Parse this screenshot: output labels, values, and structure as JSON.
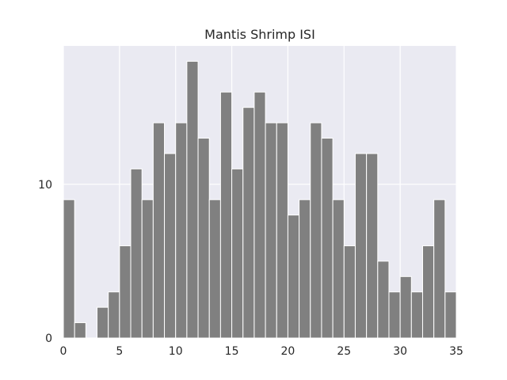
{
  "chart_data": {
    "type": "bar",
    "title": "Mantis Shrimp ISI",
    "xlabel": "",
    "ylabel": "",
    "xlim": [
      0,
      35
    ],
    "ylim": [
      0,
      19
    ],
    "bin_width": 1,
    "x_ticks": [
      0,
      5,
      10,
      15,
      20,
      25,
      30,
      35
    ],
    "y_ticks": [
      0,
      10
    ],
    "grid": true,
    "colors": {
      "bar": "#808080",
      "bar_edge": "#ffffff",
      "background": "#eaeaf2",
      "grid": "#ffffff"
    },
    "bins": [
      0,
      1,
      2,
      3,
      4,
      5,
      6,
      7,
      8,
      9,
      10,
      11,
      12,
      13,
      14,
      15,
      16,
      17,
      18,
      19,
      20,
      21,
      22,
      23,
      24,
      25,
      26,
      27,
      28,
      29,
      30,
      31,
      32,
      33,
      34
    ],
    "values": [
      9,
      1,
      0,
      2,
      3,
      6,
      11,
      9,
      14,
      12,
      14,
      18,
      13,
      9,
      16,
      11,
      15,
      16,
      14,
      14,
      8,
      9,
      14,
      13,
      9,
      6,
      12,
      12,
      5,
      3,
      4,
      3,
      6,
      9,
      3
    ]
  }
}
